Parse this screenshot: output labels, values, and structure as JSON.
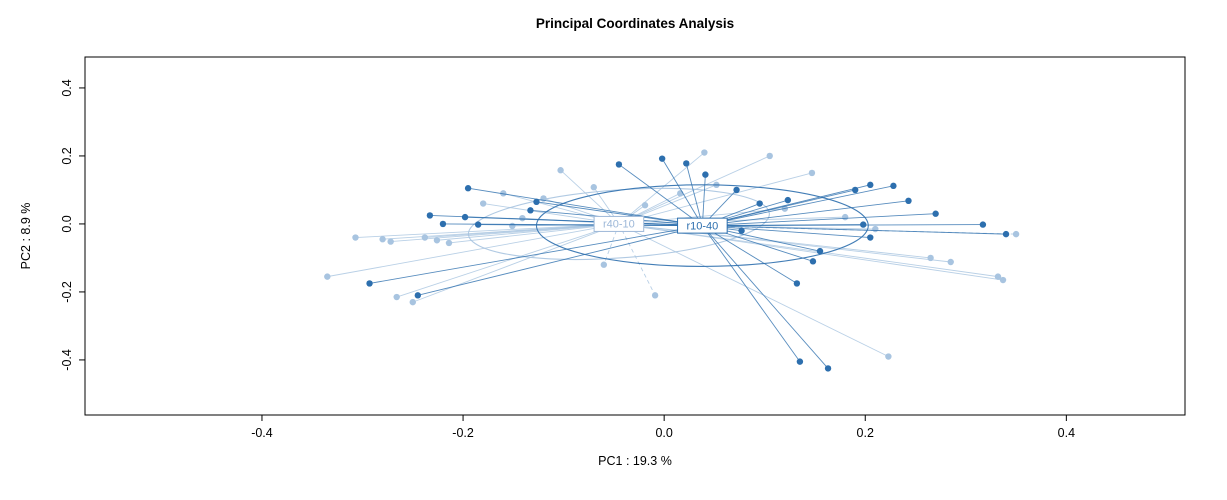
{
  "title": "Principal Coordinates Analysis",
  "chart_data": {
    "type": "scatter",
    "title": "Principal Coordinates Analysis",
    "xlabel": "PC1 :  19.3 %",
    "ylabel": "PC2 :  8.9 %",
    "xlim": [
      -0.576,
      0.518
    ],
    "ylim": [
      -0.562,
      0.491
    ],
    "x_ticks": {
      "values": [
        -0.4,
        -0.2,
        0.0,
        0.2,
        0.4
      ],
      "labels": [
        "-0.4",
        "-0.2",
        "0.0",
        "0.2",
        "0.4"
      ]
    },
    "y_ticks": {
      "values": [
        -0.4,
        -0.2,
        0.0,
        0.2,
        0.4
      ],
      "labels": [
        "-0.4",
        "-0.2",
        "0.0",
        "0.2",
        "0.4"
      ]
    },
    "grid": false,
    "legend": "none",
    "background": "#ffffff",
    "box_color": "#000000",
    "groups": [
      {
        "name": "r40-10",
        "color": "#a8c4e0",
        "label_color": "#9db8d8",
        "centroid": [
          -0.045,
          0.0
        ],
        "ellipse": {
          "rx": 0.15,
          "ry": 0.1,
          "rotate": -4
        },
        "dashed_point_indices": [
          23,
          24,
          31
        ],
        "points": [
          [
            -0.335,
            -0.155
          ],
          [
            -0.266,
            -0.215
          ],
          [
            -0.307,
            -0.04
          ],
          [
            -0.28,
            -0.045
          ],
          [
            -0.272,
            -0.052
          ],
          [
            -0.238,
            -0.04
          ],
          [
            -0.226,
            -0.048
          ],
          [
            -0.214,
            -0.056
          ],
          [
            -0.151,
            -0.006
          ],
          [
            -0.141,
            0.017
          ],
          [
            -0.103,
            0.158
          ],
          [
            -0.07,
            0.108
          ],
          [
            -0.019,
            0.055
          ],
          [
            0.016,
            0.09
          ],
          [
            0.04,
            0.21
          ],
          [
            0.105,
            0.2
          ],
          [
            0.147,
            0.15
          ],
          [
            0.052,
            0.115
          ],
          [
            0.265,
            -0.1
          ],
          [
            0.285,
            -0.112
          ],
          [
            0.332,
            -0.155
          ],
          [
            0.337,
            -0.165
          ],
          [
            0.223,
            -0.39
          ],
          [
            -0.009,
            -0.21
          ],
          [
            -0.06,
            -0.12
          ],
          [
            0.12,
            0.045
          ],
          [
            0.18,
            0.02
          ],
          [
            0.21,
            -0.015
          ],
          [
            -0.18,
            0.06
          ],
          [
            -0.16,
            0.09
          ],
          [
            -0.12,
            0.075
          ],
          [
            0.35,
            -0.03
          ],
          [
            -0.25,
            -0.23
          ]
        ]
      },
      {
        "name": "r10-40",
        "color": "#2d6fae",
        "label_color": "#2d6fae",
        "centroid": [
          0.038,
          -0.005
        ],
        "ellipse": {
          "rx": 0.165,
          "ry": 0.12,
          "rotate": 0
        },
        "dashed_point_indices": [],
        "points": [
          [
            -0.195,
            0.105
          ],
          [
            -0.233,
            0.025
          ],
          [
            -0.22,
            0.0
          ],
          [
            -0.198,
            0.02
          ],
          [
            -0.185,
            -0.002
          ],
          [
            -0.133,
            0.04
          ],
          [
            -0.127,
            0.065
          ],
          [
            -0.293,
            -0.175
          ],
          [
            -0.245,
            -0.21
          ],
          [
            -0.045,
            0.175
          ],
          [
            -0.002,
            0.192
          ],
          [
            0.022,
            0.178
          ],
          [
            0.041,
            0.145
          ],
          [
            0.072,
            0.1
          ],
          [
            0.123,
            0.07
          ],
          [
            0.19,
            0.1
          ],
          [
            0.205,
            0.115
          ],
          [
            0.228,
            0.112
          ],
          [
            0.243,
            0.068
          ],
          [
            0.27,
            0.03
          ],
          [
            0.317,
            -0.002
          ],
          [
            0.34,
            -0.03
          ],
          [
            0.198,
            -0.002
          ],
          [
            0.205,
            -0.04
          ],
          [
            0.155,
            -0.08
          ],
          [
            0.148,
            -0.11
          ],
          [
            0.132,
            -0.175
          ],
          [
            0.135,
            -0.405
          ],
          [
            0.163,
            -0.425
          ],
          [
            0.077,
            -0.02
          ],
          [
            0.095,
            0.06
          ]
        ]
      }
    ]
  }
}
